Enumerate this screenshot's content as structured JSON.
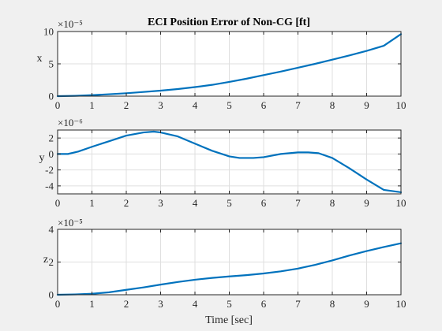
{
  "chart_data": [
    {
      "type": "line",
      "title": "ECI Position Error of Non-CG [ft]",
      "ylabel": "x",
      "xlabel": "",
      "exponent_label": "×10⁻⁵",
      "exponent": "-5",
      "xlim": [
        0,
        10
      ],
      "ylim": [
        0,
        10
      ],
      "grid": true,
      "x_ticks": [
        0,
        1,
        2,
        3,
        4,
        5,
        6,
        7,
        8,
        9,
        10
      ],
      "y_ticks": [
        0,
        5,
        10
      ],
      "series": [
        {
          "color": "#0072bd",
          "x": [
            0,
            0.5,
            1,
            1.5,
            2,
            2.5,
            3,
            3.5,
            4,
            4.5,
            5,
            5.5,
            6,
            6.5,
            7,
            7.5,
            8,
            8.5,
            9,
            9.5,
            10
          ],
          "y": [
            0,
            0.05,
            0.15,
            0.3,
            0.45,
            0.65,
            0.85,
            1.1,
            1.4,
            1.75,
            2.2,
            2.7,
            3.25,
            3.8,
            4.4,
            5.0,
            5.65,
            6.3,
            7.0,
            7.8,
            9.6
          ]
        }
      ]
    },
    {
      "type": "line",
      "title": "",
      "ylabel": "y",
      "xlabel": "",
      "exponent_label": "×10⁻⁶",
      "exponent": "-6",
      "xlim": [
        0,
        10
      ],
      "ylim": [
        -5,
        3
      ],
      "grid": true,
      "x_ticks": [
        0,
        1,
        2,
        3,
        4,
        5,
        6,
        7,
        8,
        9,
        10
      ],
      "y_ticks": [
        -4,
        -2,
        0,
        2
      ],
      "series": [
        {
          "color": "#0072bd",
          "x": [
            0,
            0.3,
            0.6,
            1,
            1.5,
            2,
            2.5,
            2.8,
            3,
            3.5,
            4,
            4.5,
            5,
            5.3,
            5.7,
            6,
            6.5,
            7,
            7.3,
            7.6,
            8,
            8.5,
            9,
            9.5,
            10
          ],
          "y": [
            0,
            0,
            0.3,
            0.9,
            1.6,
            2.3,
            2.7,
            2.8,
            2.7,
            2.2,
            1.3,
            0.4,
            -0.3,
            -0.5,
            -0.5,
            -0.4,
            0,
            0.2,
            0.2,
            0.1,
            -0.5,
            -1.8,
            -3.2,
            -4.5,
            -4.8
          ]
        }
      ]
    },
    {
      "type": "line",
      "title": "",
      "ylabel": "z",
      "xlabel": "Time [sec]",
      "exponent_label": "×10⁻⁵",
      "exponent": "-5",
      "xlim": [
        0,
        10
      ],
      "ylim": [
        0,
        4
      ],
      "grid": true,
      "x_ticks": [
        0,
        1,
        2,
        3,
        4,
        5,
        6,
        7,
        8,
        9,
        10
      ],
      "y_ticks": [
        0,
        2,
        4
      ],
      "series": [
        {
          "color": "#0072bd",
          "x": [
            0,
            0.5,
            1,
            1.5,
            2,
            2.5,
            3,
            3.5,
            4,
            4.5,
            5,
            5.5,
            6,
            6.5,
            7,
            7.5,
            8,
            8.5,
            9,
            9.5,
            10
          ],
          "y": [
            0,
            0.02,
            0.06,
            0.15,
            0.3,
            0.45,
            0.62,
            0.78,
            0.92,
            1.03,
            1.12,
            1.2,
            1.3,
            1.43,
            1.6,
            1.83,
            2.1,
            2.4,
            2.67,
            2.92,
            3.15
          ]
        }
      ]
    }
  ]
}
